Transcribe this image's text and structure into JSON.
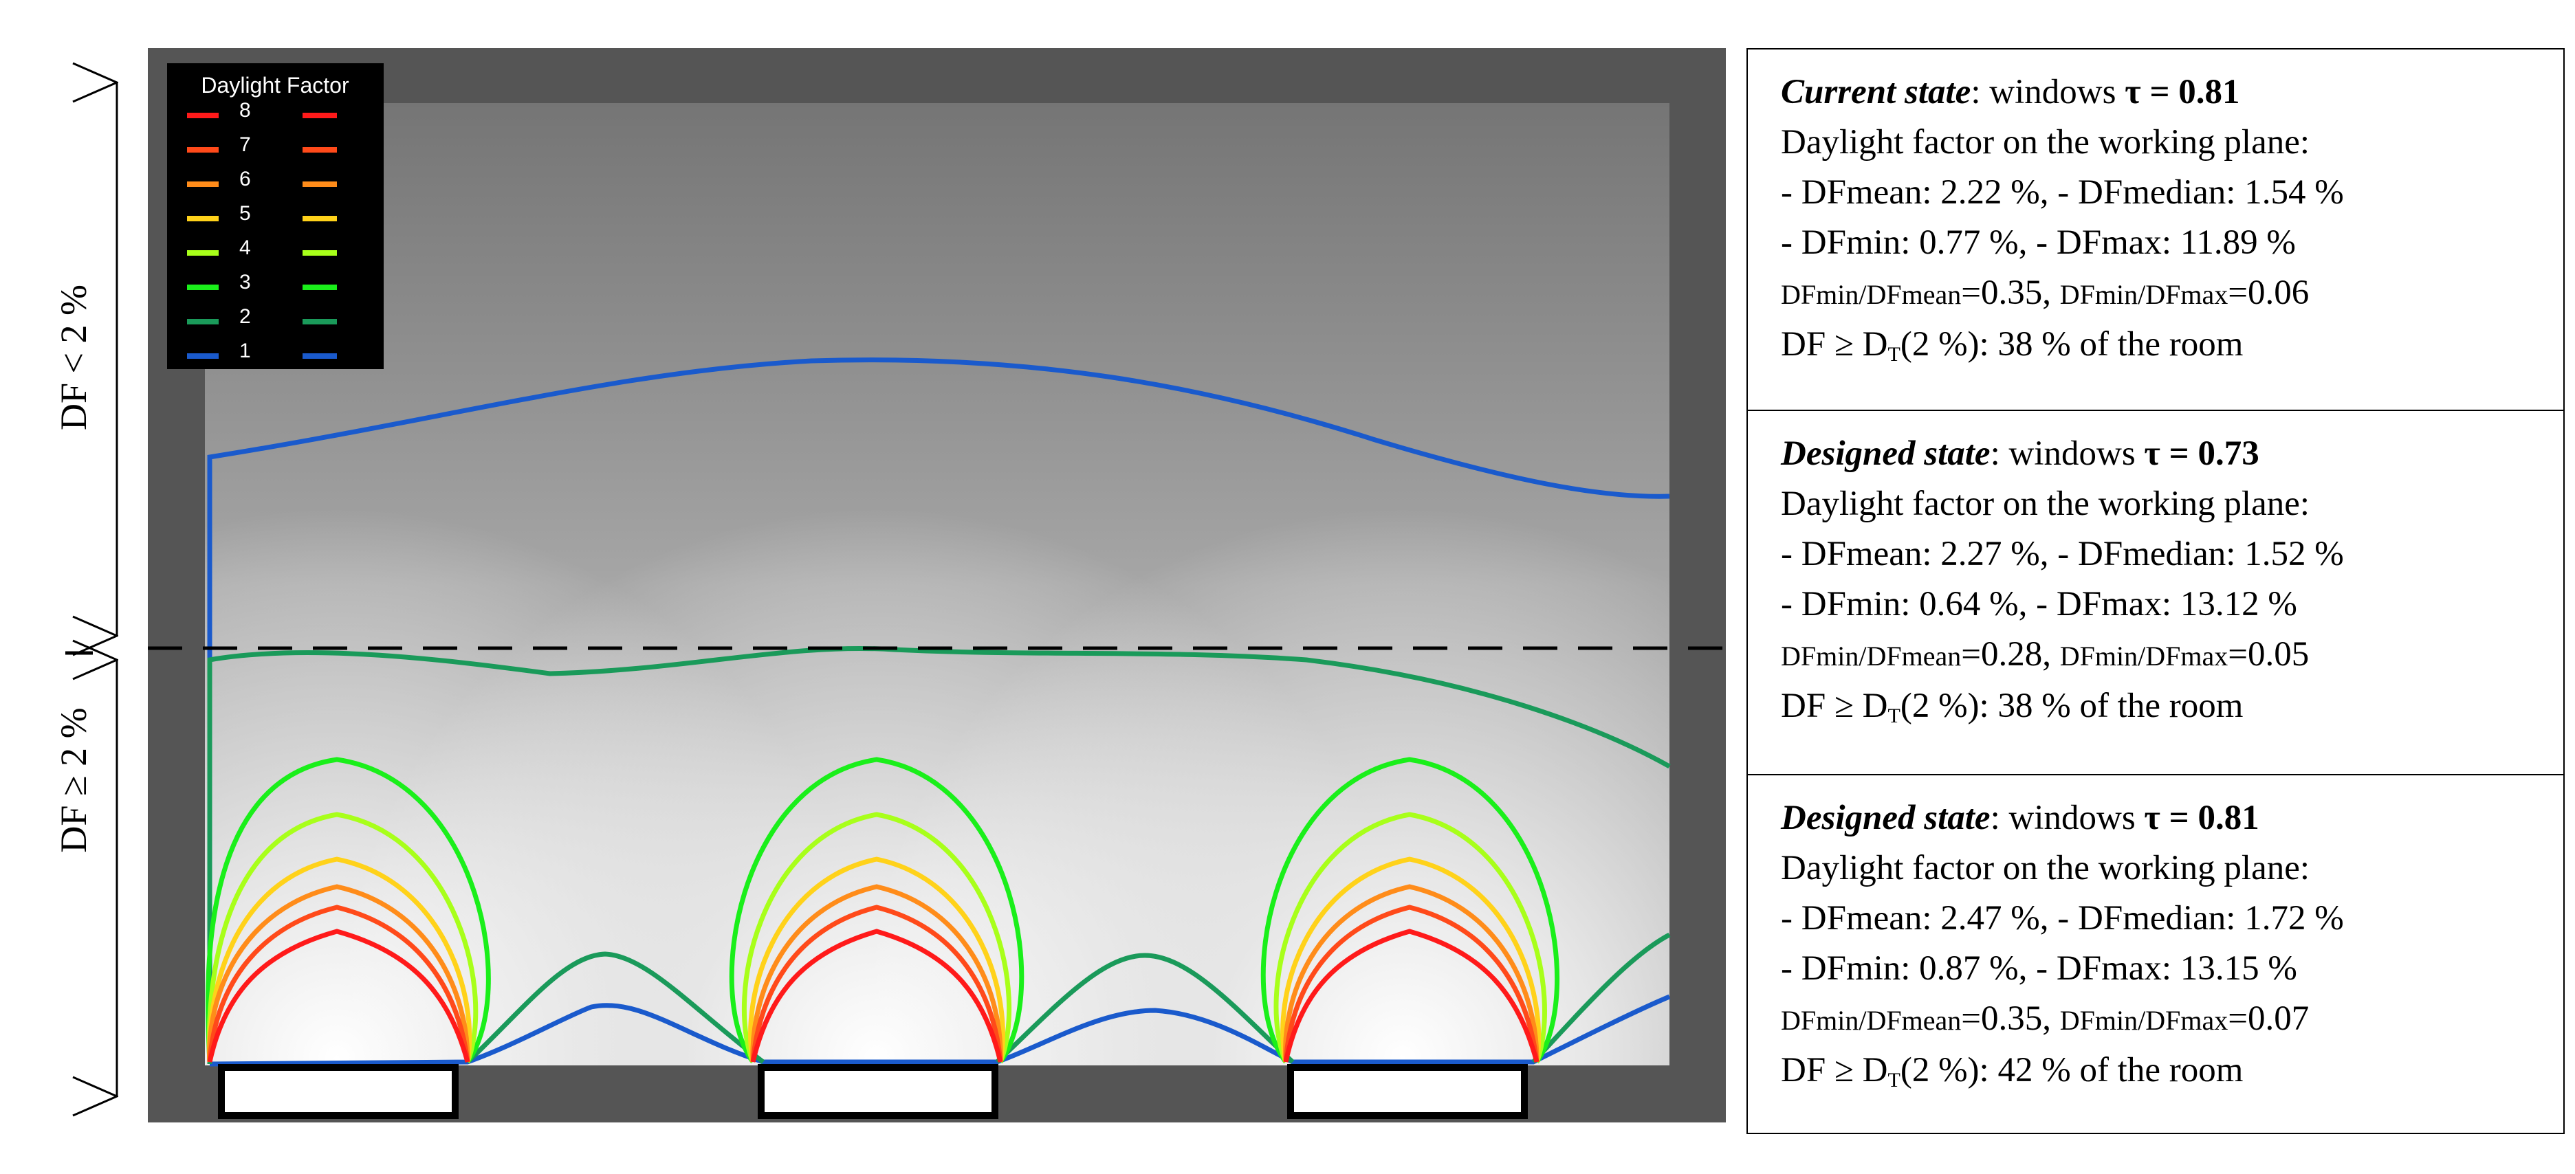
{
  "colors": {
    "frame": "#555555",
    "floor_light": "#ffffff",
    "floor_dark": "#7a7a7a",
    "dashed_line": "#000000"
  },
  "legend": {
    "title": "Daylight Factor",
    "items": [
      {
        "value": "8",
        "color": "#ff1a1a"
      },
      {
        "value": "7",
        "color": "#ff4a1a"
      },
      {
        "value": "6",
        "color": "#ff8c1a"
      },
      {
        "value": "5",
        "color": "#ffd21a"
      },
      {
        "value": "4",
        "color": "#a8ff1a"
      },
      {
        "value": "3",
        "color": "#1aef1a"
      },
      {
        "value": "2",
        "color": "#1a9a5a"
      },
      {
        "value": "1",
        "color": "#1a5acc"
      }
    ]
  },
  "vertical_labels": {
    "upper": "DF < 2 %",
    "lower": "DF ≥ 2 %"
  },
  "panels": [
    {
      "state": "Current state",
      "tau_prefix": ": windows ",
      "tau": "τ = 0.81",
      "heading": "Daylight factor on the working plane:",
      "line1": "- DFmean: 2.22 %, - DFmedian: 1.54 %",
      "line2": "- DFmin: 0.77 %, - DFmax: 11.89 %",
      "ratio_a_label": "DFmin/DFmean",
      "ratio_a_value": "=0.35, ",
      "ratio_b_label": "DFmin/DFmax",
      "ratio_b_value": "=0.06",
      "coverage": "(2 %): 38 % of the room"
    },
    {
      "state": "Designed state",
      "tau_prefix": ": windows ",
      "tau": "τ = 0.73",
      "heading": "Daylight factor on the working plane:",
      "line1": "- DFmean: 2.27 %, - DFmedian: 1.52 %",
      "line2": "- DFmin: 0.64 %, - DFmax: 13.12 %",
      "ratio_a_label": "DFmin/DFmean",
      "ratio_a_value": "=0.28, ",
      "ratio_b_label": "DFmin/DFmax",
      "ratio_b_value": "=0.05",
      "coverage": "(2 %): 38 % of the room"
    },
    {
      "state": "Designed state",
      "tau_prefix": ": windows ",
      "tau": "τ = 0.81",
      "heading": "Daylight factor on the working plane:",
      "line1": "- DFmean: 2.47 %, - DFmedian: 1.72 %",
      "line2": "- DFmin: 0.87 %, - DFmax: 13.15 %",
      "ratio_a_label": "DFmin/DFmean",
      "ratio_a_value": "=0.35, ",
      "ratio_b_label": "DFmin/DFmax",
      "ratio_b_value": "=0.07",
      "coverage": "(2 %): 42 % of the room"
    }
  ],
  "coverage_prefix": "DF ≥ D",
  "coverage_sub": "T"
}
